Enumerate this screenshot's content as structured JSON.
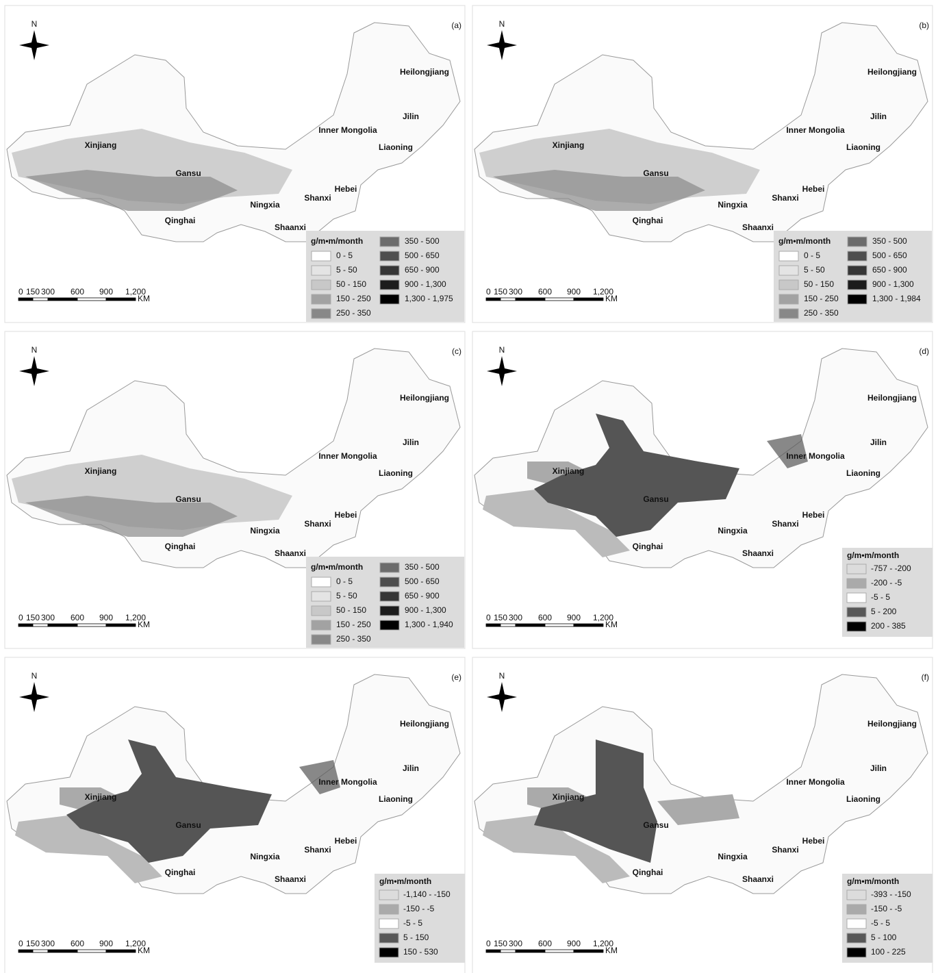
{
  "north": "N",
  "provinces": [
    "Heilongjiang",
    "Jilin",
    "Inner Mongolia",
    "Liaoning",
    "Xinjiang",
    "Gansu",
    "Hebei",
    "Shanxi",
    "Ningxia",
    "Qinghai",
    "Shaanxi"
  ],
  "scale_bar": {
    "labels": [
      "0",
      "150",
      "300",
      "600",
      "900",
      "1,200"
    ],
    "unit": "KM"
  },
  "panels": [
    {
      "label": "(a)",
      "legend": {
        "title": "g/m•m/month",
        "items": [
          {
            "label": "0 - 5",
            "color": "#ffffff"
          },
          {
            "label": "5 - 50",
            "color": "#e4e4e4"
          },
          {
            "label": "50 - 150",
            "color": "#c8c8c8"
          },
          {
            "label": "150 - 250",
            "color": "#a2a2a2"
          },
          {
            "label": "250 - 350",
            "color": "#888888"
          },
          {
            "label": "350 - 500",
            "color": "#6c6c6c"
          },
          {
            "label": "500 - 650",
            "color": "#4e4e4e"
          },
          {
            "label": "650 - 900",
            "color": "#363636"
          },
          {
            "label": "900 - 1,300",
            "color": "#1c1c1c"
          },
          {
            "label": "1,300 - 1,975",
            "color": "#000000"
          }
        ]
      }
    },
    {
      "label": "(b)",
      "legend": {
        "title": "g/m•m/month",
        "items": [
          {
            "label": "0 - 5",
            "color": "#ffffff"
          },
          {
            "label": "5 - 50",
            "color": "#e4e4e4"
          },
          {
            "label": "50 - 150",
            "color": "#c8c8c8"
          },
          {
            "label": "150 - 250",
            "color": "#a2a2a2"
          },
          {
            "label": "250 - 350",
            "color": "#888888"
          },
          {
            "label": "350 - 500",
            "color": "#6c6c6c"
          },
          {
            "label": "500 - 650",
            "color": "#4e4e4e"
          },
          {
            "label": "650 - 900",
            "color": "#363636"
          },
          {
            "label": "900 - 1,300",
            "color": "#1c1c1c"
          },
          {
            "label": "1,300 - 1,984",
            "color": "#000000"
          }
        ]
      }
    },
    {
      "label": "(c)",
      "legend": {
        "title": "g/m•m/month",
        "items": [
          {
            "label": "0 - 5",
            "color": "#ffffff"
          },
          {
            "label": "5 - 50",
            "color": "#e4e4e4"
          },
          {
            "label": "50 - 150",
            "color": "#c8c8c8"
          },
          {
            "label": "150 - 250",
            "color": "#a2a2a2"
          },
          {
            "label": "250 - 350",
            "color": "#888888"
          },
          {
            "label": "350 - 500",
            "color": "#6c6c6c"
          },
          {
            "label": "500 - 650",
            "color": "#4e4e4e"
          },
          {
            "label": "650 - 900",
            "color": "#363636"
          },
          {
            "label": "900 - 1,300",
            "color": "#1c1c1c"
          },
          {
            "label": "1,300 - 1,940",
            "color": "#000000"
          }
        ]
      }
    },
    {
      "label": "(d)",
      "legend": {
        "title": "g/m•m/month",
        "items": [
          {
            "label": "-757 - -200",
            "color": "#dcdcdc"
          },
          {
            "label": "-200 - -5",
            "color": "#aaaaaa"
          },
          {
            "label": "-5 - 5",
            "color": "#ffffff"
          },
          {
            "label": "5 - 200",
            "color": "#585858"
          },
          {
            "label": "200 - 385",
            "color": "#000000"
          }
        ]
      }
    },
    {
      "label": "(e)",
      "legend": {
        "title": "g/m•m/month",
        "items": [
          {
            "label": "-1,140 - -150",
            "color": "#dcdcdc"
          },
          {
            "label": "-150 - -5",
            "color": "#aaaaaa"
          },
          {
            "label": "-5 - 5",
            "color": "#ffffff"
          },
          {
            "label": "5 - 150",
            "color": "#585858"
          },
          {
            "label": "150 - 530",
            "color": "#000000"
          }
        ]
      }
    },
    {
      "label": "(f)",
      "legend": {
        "title": "g/m•m/month",
        "items": [
          {
            "label": "-393 - -150",
            "color": "#dcdcdc"
          },
          {
            "label": "-150 - -5",
            "color": "#aaaaaa"
          },
          {
            "label": "-5 - 5",
            "color": "#ffffff"
          },
          {
            "label": "5 - 100",
            "color": "#585858"
          },
          {
            "label": "100 - 225",
            "color": "#000000"
          }
        ]
      }
    }
  ]
}
